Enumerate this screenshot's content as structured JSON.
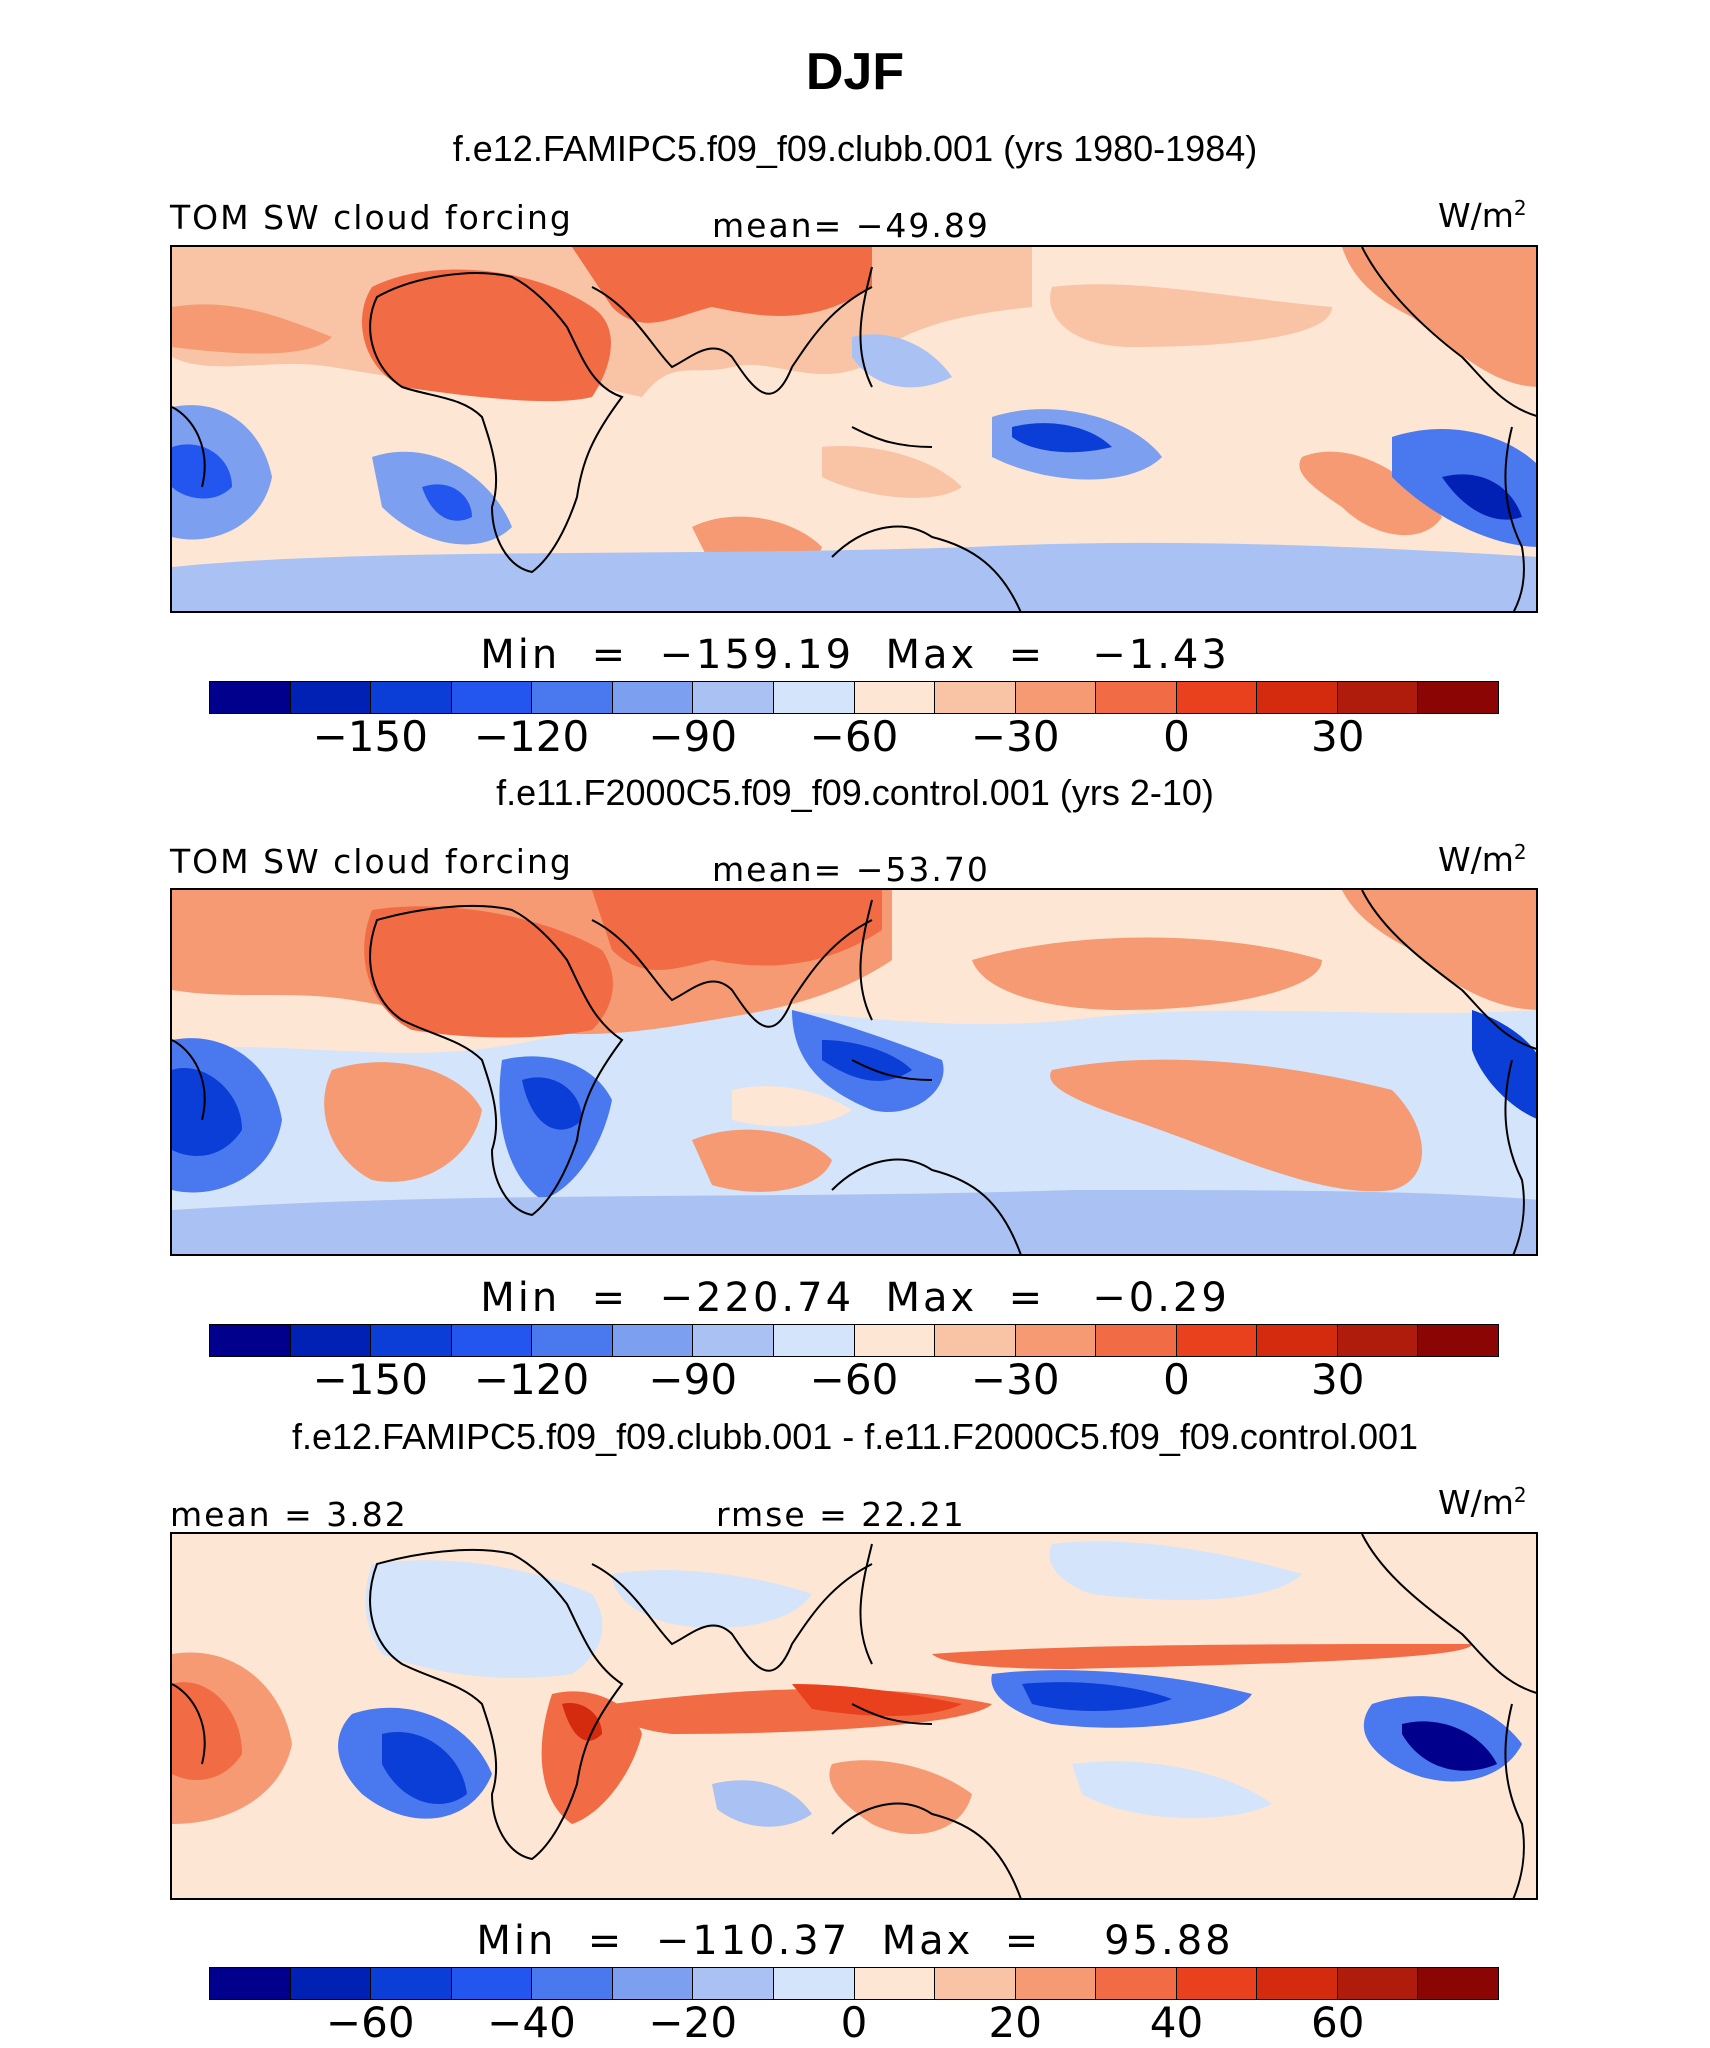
{
  "figure": {
    "season": "DJF"
  },
  "palette": {
    "cells": [
      "#00008c",
      "#0021b3",
      "#0a3ed6",
      "#2256ef",
      "#4a78ee",
      "#7d9fef",
      "#a9c2f3",
      "#d4e4fa",
      "#fde6d4",
      "#f9c3a5",
      "#f59a73",
      "#f16b45",
      "#e9401d",
      "#d42b0f",
      "#b01c0c",
      "#8b0505"
    ]
  },
  "panels": [
    {
      "case_title": "f.e12.FAMIPC5.f09_f09.clubb.001 (yrs 1980-1984)",
      "left_label": "TOM SW cloud forcing",
      "center_label": "mean= −49.89",
      "units": "W/m",
      "units_sup": "2",
      "min_max": "Min  =  −159.19  Max  =   −1.43",
      "ticks": [
        "−150",
        "−120",
        "−90",
        "−60",
        "−30",
        "0",
        "30"
      ]
    },
    {
      "case_title": "f.e11.F2000C5.f09_f09.control.001 (yrs 2-10)",
      "left_label": "TOM SW cloud forcing",
      "center_label": "mean= −53.70",
      "units": "W/m",
      "units_sup": "2",
      "min_max": "Min  =  −220.74  Max  =   −0.29",
      "ticks": [
        "−150",
        "−120",
        "−90",
        "−60",
        "−30",
        "0",
        "30"
      ]
    },
    {
      "case_title": "f.e12.FAMIPC5.f09_f09.clubb.001 - f.e11.F2000C5.f09_f09.control.001",
      "left_label": "mean =    3.82",
      "center_label": "rmse =   22.21",
      "units": "W/m",
      "units_sup": "2",
      "min_max": "Min  =  −110.37  Max  =    95.88",
      "ticks": [
        "−60",
        "−40",
        "−20",
        "0",
        "20",
        "40",
        "60"
      ]
    }
  ]
}
